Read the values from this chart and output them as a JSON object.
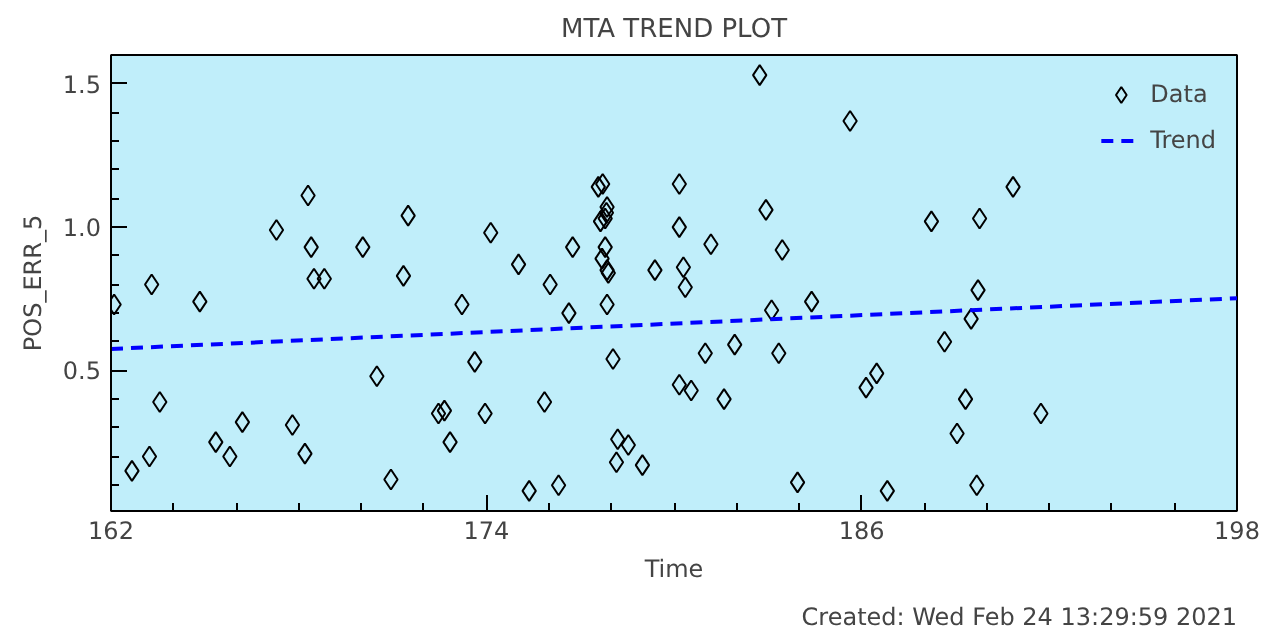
{
  "chart_data": {
    "type": "scatter",
    "title": "MTA TREND PLOT",
    "xlabel": "Time",
    "ylabel": "POS_ERR_5",
    "annotations": [
      "Created: Wed Feb 24 13:29:59 2021"
    ],
    "xlim": [
      162,
      198
    ],
    "xticks": [
      162,
      174,
      186,
      198
    ],
    "ylim": [
      0.01,
      1.6
    ],
    "yticks": [
      0.5,
      {
        "value": 1,
        "label": "1.0"
      },
      1.5
    ],
    "grid": false,
    "legend": "top right",
    "series": [
      {
        "name": "Data",
        "marker": "diamond",
        "color": "#000000",
        "x": [
          162.1,
          162.67,
          163.3,
          163.23,
          163.56,
          164.84,
          165.35,
          165.8,
          166.2,
          167.29,
          167.8,
          168.2,
          168.3,
          168.4,
          168.49,
          168.82,
          170.05,
          170.5,
          170.95,
          171.35,
          171.5,
          172.47,
          172.66,
          172.84,
          173.22,
          173.63,
          173.96,
          174.14,
          175.03,
          175.37,
          175.86,
          176.04,
          176.31,
          176.64,
          176.76,
          177.58,
          177.72,
          177.8,
          177.84,
          177.86,
          177.65,
          177.8,
          177.7,
          177.86,
          177.9,
          177.86,
          178.05,
          178.2,
          178.54,
          178.16,
          178.99,
          179.39,
          180.17,
          180.17,
          180.3,
          180.36,
          180.17,
          180.55,
          181.0,
          181.18,
          181.6,
          181.94,
          182.74,
          182.94,
          183.12,
          183.35,
          183.46,
          183.95,
          184.4,
          185.63,
          186.14,
          186.48,
          186.82,
          188.23,
          188.65,
          189.05,
          189.32,
          189.5,
          189.68,
          189.72,
          189.77,
          190.84,
          191.73
        ],
        "values": [
          0.73,
          0.15,
          0.8,
          0.2,
          0.39,
          0.74,
          0.25,
          0.2,
          0.32,
          0.99,
          0.31,
          0.21,
          1.11,
          0.93,
          0.82,
          0.82,
          0.93,
          0.48,
          0.12,
          0.83,
          1.04,
          0.35,
          0.36,
          0.25,
          0.73,
          0.53,
          0.35,
          0.98,
          0.87,
          0.08,
          0.39,
          0.8,
          0.1,
          0.7,
          0.93,
          1.14,
          1.15,
          1.03,
          1.05,
          1.07,
          1.02,
          0.93,
          0.89,
          0.85,
          0.84,
          0.73,
          0.54,
          0.26,
          0.24,
          0.18,
          0.17,
          0.85,
          1.15,
          1.0,
          0.86,
          0.79,
          0.45,
          0.43,
          0.56,
          0.94,
          0.4,
          0.59,
          1.53,
          1.06,
          0.71,
          0.56,
          0.92,
          0.11,
          0.74,
          1.37,
          0.44,
          0.49,
          0.08,
          1.02,
          0.6,
          0.28,
          0.4,
          0.68,
          0.1,
          0.78,
          1.03,
          1.14,
          0.35
        ]
      },
      {
        "name": "Trend",
        "type": "line",
        "line_style": "dashed",
        "color": "#0000ff",
        "x": [
          162,
          198
        ],
        "values": [
          0.575,
          0.752
        ]
      }
    ]
  }
}
